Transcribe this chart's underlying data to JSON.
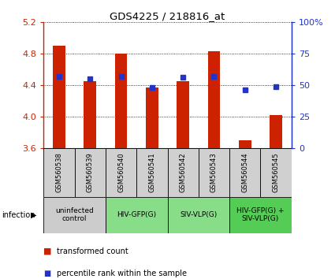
{
  "title": "GDS4225 / 218816_at",
  "samples": [
    "GSM560538",
    "GSM560539",
    "GSM560540",
    "GSM560541",
    "GSM560542",
    "GSM560543",
    "GSM560544",
    "GSM560545"
  ],
  "red_values": [
    4.9,
    4.45,
    4.8,
    4.37,
    4.45,
    4.83,
    3.7,
    4.02
  ],
  "blue_values": [
    57,
    55,
    57,
    48,
    56,
    57,
    46,
    49
  ],
  "ylim_left": [
    3.6,
    5.2
  ],
  "ylim_right": [
    0,
    100
  ],
  "yticks_left": [
    3.6,
    4.0,
    4.4,
    4.8,
    5.2
  ],
  "yticks_right": [
    0,
    25,
    50,
    75,
    100
  ],
  "bar_color": "#cc2200",
  "dot_color": "#2233cc",
  "groups": [
    {
      "label": "uninfected\ncontrol",
      "start": 0,
      "end": 2,
      "color": "#cccccc"
    },
    {
      "label": "HIV-GFP(G)",
      "start": 2,
      "end": 4,
      "color": "#88dd88"
    },
    {
      "label": "SIV-VLP(G)",
      "start": 4,
      "end": 6,
      "color": "#88dd88"
    },
    {
      "label": "HIV-GFP(G) +\nSIV-VLP(G)",
      "start": 6,
      "end": 8,
      "color": "#55cc55"
    }
  ],
  "infection_label": "infection",
  "legend_red": "transformed count",
  "legend_blue": "percentile rank within the sample",
  "bar_width": 0.4,
  "base_value": 3.6
}
